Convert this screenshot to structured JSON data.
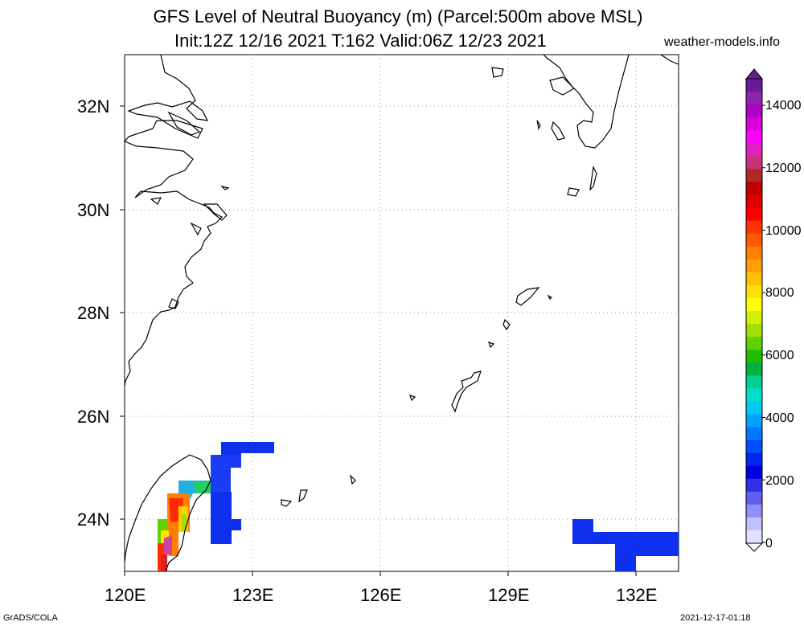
{
  "header": {
    "title_line1": "GFS Level of Neutral Buoyancy (m) (Parcel:500m above MSL)",
    "title_line2": "Init:12Z 12/16 2021 T:162 Valid:06Z 12/23 2021",
    "site": "weather-models.info"
  },
  "map": {
    "lat_labels": [
      "32N",
      "30N",
      "28N",
      "26N",
      "24N"
    ],
    "lon_labels": [
      "120E",
      "123E",
      "126E",
      "129E",
      "132E"
    ],
    "extent": {
      "lon": [
        120,
        133
      ],
      "lat": [
        23,
        33
      ]
    }
  },
  "colorbar": {
    "labels": [
      "14000",
      "12000",
      "10000",
      "8000",
      "6000",
      "4000",
      "2000",
      "0"
    ],
    "colors": [
      "#6a1b9a",
      "#8e24aa",
      "#b000c8",
      "#d800d8",
      "#ff00ff",
      "#e020c0",
      "#c83276",
      "#b02828",
      "#c00000",
      "#e00000",
      "#ff0000",
      "#ff3300",
      "#ff5a00",
      "#ff7f00",
      "#ffa000",
      "#ffc000",
      "#ffe000",
      "#ffff00",
      "#d0f000",
      "#a0e000",
      "#60d000",
      "#20c000",
      "#00b040",
      "#00d090",
      "#00e0c8",
      "#00c8f0",
      "#00a0ff",
      "#0078ff",
      "#0050ff",
      "#0028f0",
      "#0000e0",
      "#3030e8",
      "#6060f0",
      "#9090f8",
      "#c0c0ff",
      "#e0e0ff"
    ]
  },
  "footer": {
    "left": "GrADS/COLA",
    "right": "2021-12-17-01:18"
  }
}
